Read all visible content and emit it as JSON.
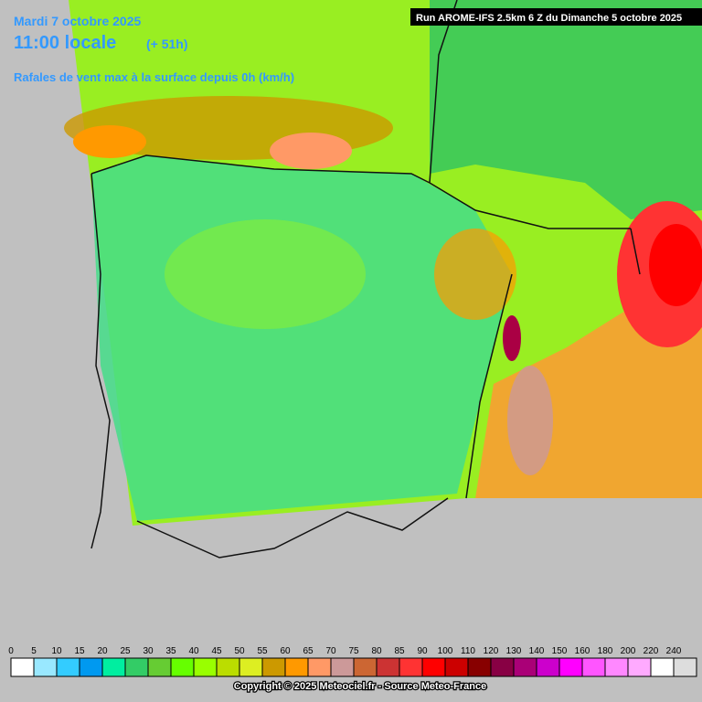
{
  "header": {
    "date": "Mardi 7 octobre 2025",
    "time": "11:00 locale",
    "lead": "(+ 51h)",
    "parameter": "Rafales de vent max à la surface depuis 0h (km/h)",
    "run": "Run AROME-IFS 2.5km 6 Z du Dimanche 5 octobre 2025"
  },
  "legend": {
    "values": [
      0,
      5,
      10,
      15,
      20,
      25,
      30,
      35,
      40,
      45,
      50,
      55,
      60,
      65,
      70,
      75,
      80,
      85,
      90,
      100,
      110,
      120,
      130,
      140,
      150,
      160,
      180,
      200,
      220,
      240
    ],
    "colors": [
      "#ffffff",
      "#99e8ff",
      "#33ccff",
      "#0099f0",
      "#00eea0",
      "#33cc66",
      "#66cc33",
      "#66ff00",
      "#99ff00",
      "#bbdd00",
      "#ddee22",
      "#cc9900",
      "#ff9900",
      "#ff9966",
      "#cc9999",
      "#cc6633",
      "#cc3333",
      "#ff3333",
      "#ff0000",
      "#cc0000",
      "#880000",
      "#880044",
      "#aa0077",
      "#cc00cc",
      "#ff00ff",
      "#ff55ff",
      "#ff88ff",
      "#ffaaff",
      "#ffffff",
      "#dddddd"
    ]
  },
  "footer": {
    "copyright": "Copyright © 2025 Meteociel.fr - Source Meteo-France"
  }
}
